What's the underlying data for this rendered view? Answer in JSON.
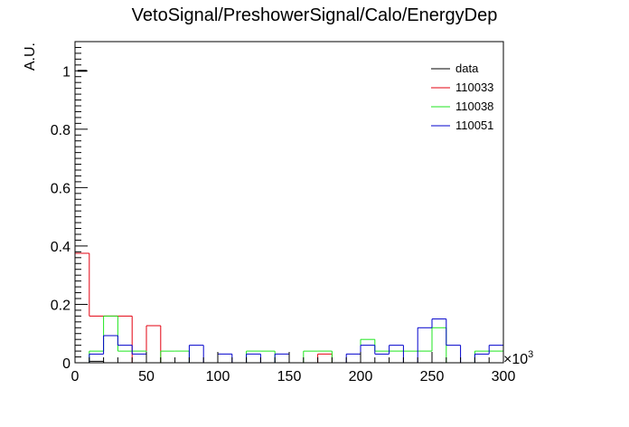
{
  "chart_data": {
    "type": "histogram",
    "title": "VetoSignal/PreshowerSignal/Calo/EnergyDep",
    "ylabel": "A.U.",
    "xlabel": "",
    "x_multiplier_label": "×10",
    "x_multiplier_exponent": "3",
    "xlim": [
      0,
      300
    ],
    "ylim": [
      0,
      1.1
    ],
    "x_ticks": [
      0,
      50,
      100,
      150,
      200,
      250,
      300
    ],
    "y_ticks": [
      0,
      0.2,
      0.4,
      0.6,
      0.8,
      1
    ],
    "y_tick_labels": [
      "0",
      "0.2",
      "0.4",
      "0.6",
      "0.8",
      "1"
    ],
    "bin_width": 10,
    "bin_starts": [
      0,
      10,
      20,
      30,
      40,
      50,
      60,
      70,
      80,
      90,
      100,
      110,
      120,
      130,
      140,
      150,
      160,
      170,
      180,
      190,
      200,
      210,
      220,
      230,
      240,
      250,
      260,
      270,
      280,
      290
    ],
    "legend_position": "top-right",
    "series": [
      {
        "name": "data",
        "color": "#000000",
        "values": [
          0,
          0.005,
          0,
          0,
          0,
          0,
          0,
          0,
          0,
          0,
          0,
          0,
          0,
          0,
          0,
          0,
          0,
          0,
          0,
          0,
          0,
          0,
          0,
          0,
          0,
          0,
          0,
          0,
          0,
          0
        ],
        "marker": {
          "x": 5,
          "y": 1.0
        }
      },
      {
        "name": "110033",
        "color": "#e3000f",
        "values": [
          0.375,
          0.16,
          0.16,
          0.16,
          0,
          0.127,
          0,
          0,
          0,
          0,
          0,
          0,
          0,
          0,
          0,
          0,
          0,
          0.03,
          0,
          0,
          0,
          0,
          0,
          0,
          0,
          0,
          0,
          0,
          0,
          0
        ]
      },
      {
        "name": "110038",
        "color": "#1fe61f",
        "values": [
          0,
          0.04,
          0.16,
          0.04,
          0.04,
          0,
          0.04,
          0.04,
          0,
          0,
          0,
          0,
          0.04,
          0.04,
          0,
          0,
          0.04,
          0.04,
          0,
          0,
          0.08,
          0.04,
          0.04,
          0.04,
          0.04,
          0.12,
          0,
          0,
          0.04,
          0.04
        ]
      },
      {
        "name": "110051",
        "color": "#0000cc",
        "values": [
          0,
          0.03,
          0.093,
          0.06,
          0.03,
          0,
          0,
          0,
          0.06,
          0,
          0.03,
          0,
          0.03,
          0,
          0.03,
          0,
          0,
          0,
          0,
          0.03,
          0.06,
          0.03,
          0.06,
          0,
          0.12,
          0.15,
          0.06,
          0,
          0.03,
          0.06
        ]
      }
    ]
  }
}
